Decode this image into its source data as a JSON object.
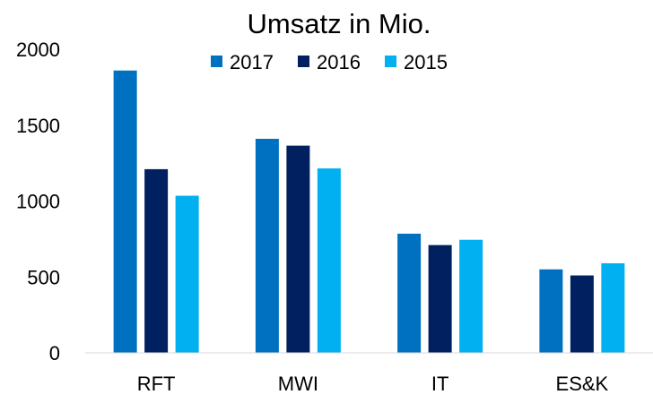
{
  "chart_data": {
    "type": "bar",
    "title": "Umsatz in Mio.",
    "xlabel": "",
    "ylabel": "",
    "categories": [
      "RFT",
      "MWI",
      "IT",
      "ES&K"
    ],
    "series": [
      {
        "name": "2017",
        "color": "#0070C0",
        "values": [
          1860,
          1410,
          785,
          550
        ]
      },
      {
        "name": "2016",
        "color": "#002060",
        "values": [
          1210,
          1365,
          710,
          510
        ]
      },
      {
        "name": "2015",
        "color": "#00B0F0",
        "values": [
          1035,
          1215,
          745,
          590
        ]
      }
    ],
    "ylim": [
      0,
      2000
    ],
    "yticks": [
      "0",
      "500",
      "1000",
      "1500",
      "2000"
    ],
    "ytick_values": [
      0,
      500,
      1000,
      1500,
      2000
    ],
    "grid": false,
    "legend_position": "top"
  }
}
